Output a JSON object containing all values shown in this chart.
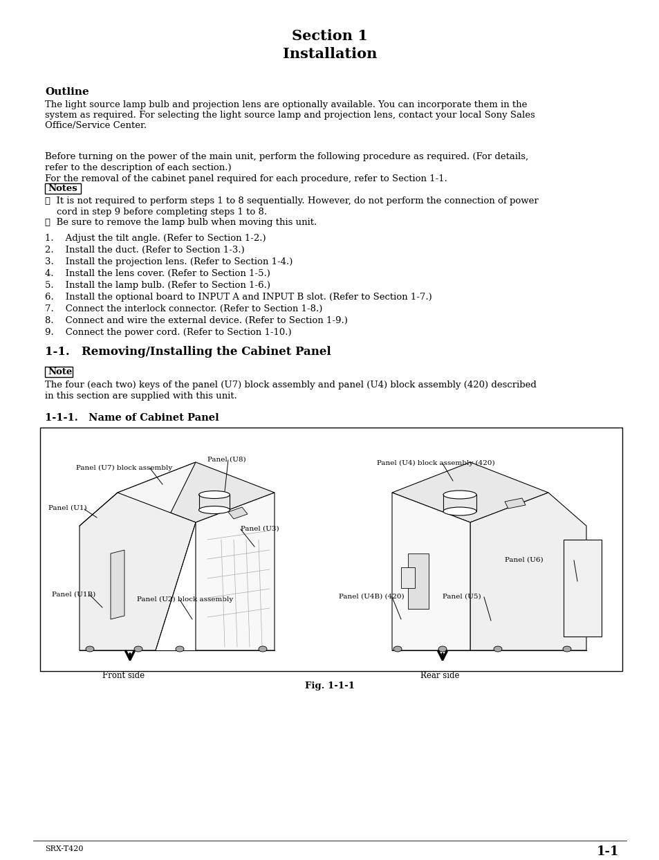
{
  "title_line1": "Section 1",
  "title_line2": "Installation",
  "outline_heading": "Outline",
  "outline_text1": "The light source lamp bulb and projection lens are optionally available. You can incorporate them in the",
  "outline_text2": "system as required. For selecting the light source lamp and projection lens, contact your local Sony Sales",
  "outline_text3": "Office/Service Center.",
  "before_text1": "Before turning on the power of the main unit, perform the following procedure as required. (For details,",
  "before_text2": "refer to the description of each section.)",
  "before_text3": "For the removal of the cabinet panel required for each procedure, refer to Section 1-1.",
  "notes_label": "Notes",
  "bullet1_line1": "・  It is not required to perform steps 1 to 8 sequentially. However, do not perform the connection of power",
  "bullet1_line2": "    cord in step 9 before completing steps 1 to 8.",
  "bullet2": "・  Be sure to remove the lamp bulb when moving this unit.",
  "steps": [
    "1.    Adjust the tilt angle. (Refer to Section 1-2.)",
    "2.    Install the duct. (Refer to Section 1-3.)",
    "3.    Install the projection lens. (Refer to Section 1-4.)",
    "4.    Install the lens cover. (Refer to Section 1-5.)",
    "5.    Install the lamp bulb. (Refer to Section 1-6.)",
    "6.    Install the optional board to INPUT A and INPUT B slot. (Refer to Section 1-7.)",
    "7.    Connect the interlock connector. (Refer to Section 1-8.)",
    "8.    Connect and wire the external device. (Refer to Section 1-9.)",
    "9.    Connect the power cord. (Refer to Section 1-10.)"
  ],
  "section11_heading": "1-1.   Removing/Installing the Cabinet Panel",
  "note_label": "Note",
  "note_text1": "The four (each two) keys of the panel (U7) block assembly and panel (U4) block assembly (420) described",
  "note_text2": "in this section are supplied with this unit.",
  "section111_heading": "1-1-1.   Name of Cabinet Panel",
  "fig_caption": "Fig. 1-1-1",
  "footer_left": "SRX-T420",
  "footer_right": "1-1",
  "bg_color": "#ffffff",
  "text_color": "#000000"
}
